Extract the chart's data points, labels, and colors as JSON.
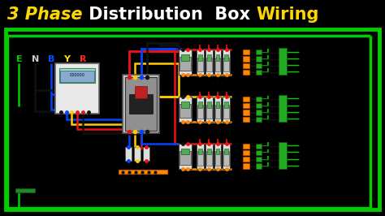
{
  "bg_color": "#000000",
  "diagram_bg": "#F0F0F0",
  "title_parts": [
    {
      "text": "3 Phase",
      "color": "#FFD700",
      "weight": "bold",
      "style": "italic"
    },
    {
      "text": " Distribution  Box ",
      "color": "#FFFFFF",
      "weight": "bold",
      "style": "normal"
    },
    {
      "text": "Wiring",
      "color": "#FFD700",
      "weight": "bold",
      "style": "normal"
    }
  ],
  "title_fontsize": 15,
  "label_letters": [
    "E",
    "N",
    "B",
    "Y",
    "R"
  ],
  "label_colors": [
    "#00CC00",
    "#CCCCCC",
    "#0055FF",
    "#FFDD00",
    "#FF2222"
  ],
  "wire_green": "#00CC00",
  "wire_black": "#111111",
  "wire_blue": "#0044FF",
  "wire_yellow": "#FFCC00",
  "wire_red": "#EE1111",
  "wire_orange": "#FF8800",
  "meter_fc": "#DDDDDD",
  "mccb_fc": "#888888",
  "mcb_fc": "#CCCCCC",
  "mcb_orange": "#FF8800",
  "terminal_green": "#22AA22",
  "terminal_orange": "#FF8800"
}
